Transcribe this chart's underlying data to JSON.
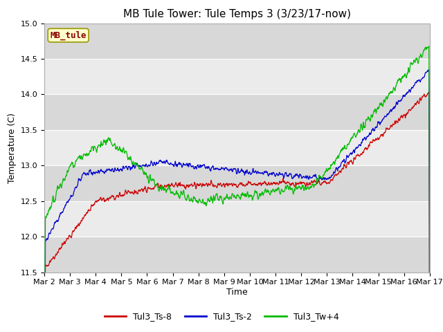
{
  "title": "MB Tule Tower: Tule Temps 3 (3/23/17-now)",
  "xlabel": "Time",
  "ylabel": "Temperature (C)",
  "ylim": [
    11.5,
    15.0
  ],
  "xlim": [
    0,
    15
  ],
  "xtick_labels": [
    "Mar 2",
    "Mar 3",
    "Mar 4",
    "Mar 5",
    "Mar 6",
    "Mar 7",
    "Mar 8",
    "Mar 9",
    "Mar 10",
    "Mar 11",
    "Mar 12",
    "Mar 13",
    "Mar 14",
    "Mar 15",
    "Mar 16",
    "Mar 17"
  ],
  "ytick_labels": [
    "11.5",
    "12.0",
    "12.5",
    "13.0",
    "13.5",
    "14.0",
    "14.5",
    "15.0"
  ],
  "series": {
    "Tul3_Ts-8": {
      "color": "#cc0000"
    },
    "Tul3_Ts-2": {
      "color": "#0000cc"
    },
    "Tul3_Tw+4": {
      "color": "#00bb00"
    }
  },
  "legend_box_facecolor": "#ffffcc",
  "legend_box_edgecolor": "#999900",
  "legend_box_text": "MB_tule",
  "legend_box_textcolor": "#880000",
  "fig_facecolor": "#ffffff",
  "plot_facecolor": "#e8e8e8",
  "grid_color": "#ffffff",
  "band_light": "#ebebeb",
  "band_dark": "#d8d8d8",
  "title_fontsize": 11,
  "axis_label_fontsize": 9,
  "tick_fontsize": 8,
  "legend_fontsize": 9
}
